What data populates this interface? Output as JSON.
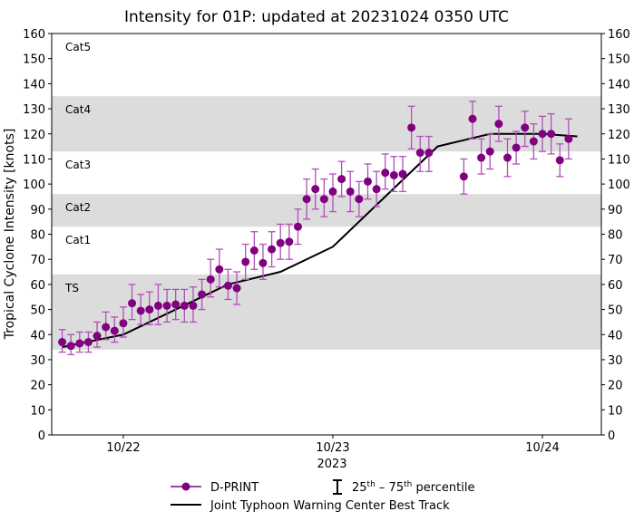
{
  "chart_data": {
    "type": "scatter",
    "title": "Intensity for 01P: updated at 20231024 0350 UTC",
    "ylabel": "Tropical Cyclone Intensity [knots]",
    "xlabel": "",
    "ylim": [
      0,
      160
    ],
    "xlim": [
      "2023-10-21T15:48",
      "2023-10-24T06:45"
    ],
    "yticks": [
      0,
      10,
      20,
      30,
      40,
      50,
      60,
      70,
      80,
      90,
      100,
      110,
      120,
      130,
      140,
      150,
      160
    ],
    "xticks": [
      {
        "date": "2023-10-22T00:00",
        "label": "10/22"
      },
      {
        "date": "2023-10-23T00:00",
        "label": "10/23"
      },
      {
        "date": "2023-10-24T00:00",
        "label": "10/24"
      }
    ],
    "year_label": "2023",
    "grid": false,
    "bands": [
      {
        "label": "TS",
        "low": 34,
        "high": 64,
        "shaded": true
      },
      {
        "label": "Cat1",
        "low": 64,
        "high": 83,
        "shaded": false
      },
      {
        "label": "Cat2",
        "low": 83,
        "high": 96,
        "shaded": true
      },
      {
        "label": "Cat3",
        "low": 96,
        "high": 113,
        "shaded": false
      },
      {
        "label": "Cat4",
        "low": 113,
        "high": 135,
        "shaded": true
      },
      {
        "label": "Cat5",
        "low": 135,
        "high": 160,
        "shaded": false
      }
    ],
    "colors": {
      "dprint": "#800080",
      "errorbar": "#b050b8",
      "best_track": "#000000",
      "band": "#dcdcdc"
    },
    "series": [
      {
        "name": "D-PRINT",
        "segments": [
          {
            "start": "2023-10-21T17:00",
            "step_hours": 1,
            "values": [
              37,
              35.5,
              36.5,
              37,
              39.5,
              43,
              41.5,
              44.5,
              52.5,
              49.5,
              50,
              51.5,
              51.5,
              52,
              51.5,
              51.5,
              56,
              62,
              66,
              59.5,
              58.5,
              69,
              73.5,
              68.5,
              74,
              76.5,
              77,
              83,
              94,
              98,
              94,
              97,
              102,
              97,
              94,
              101,
              98,
              104.5,
              103.5,
              104,
              122.5,
              112.5,
              112.5
            ],
            "p25": [
              33,
              32,
              33,
              33,
              35,
              38,
              37,
              39,
              46,
              44,
              44,
              44,
              45,
              46,
              45,
              45,
              50,
              55,
              59,
              54,
              52,
              62,
              66,
              62,
              67,
              70,
              70,
              76,
              86,
              90,
              87,
              89,
              95,
              89,
              87,
              94,
              91,
              98,
              97,
              97,
              114,
              105,
              105
            ],
            "p75": [
              42,
              40,
              41,
              41,
              45,
              49,
              47,
              51,
              60,
              56,
              57,
              60,
              58,
              58,
              58,
              59,
              62,
              70,
              74,
              66,
              65,
              76,
              81,
              76,
              81,
              84,
              84,
              90,
              102,
              106,
              102,
              104,
              109,
              105,
              101,
              108,
              105,
              112,
              111,
              111,
              131,
              119,
              119
            ]
          },
          {
            "start": "2023-10-23T15:00",
            "step_hours": 1,
            "values": [
              103,
              126,
              110.5,
              113,
              124,
              110.5,
              114.5,
              122.5,
              117,
              120,
              120,
              109.5,
              118
            ],
            "p25": [
              96,
              118,
              104,
              106,
              117,
              103,
              108,
              115,
              110,
              113,
              112,
              103,
              110
            ],
            "p75": [
              110,
              133,
              118,
              120,
              131,
              118,
              121,
              129,
              124,
              127,
              128,
              116,
              126
            ]
          }
        ]
      },
      {
        "name": "Joint Typhoon Warning Center Best Track",
        "points": [
          {
            "date": "2023-10-21T17:00",
            "value": 35
          },
          {
            "date": "2023-10-22T00:00",
            "value": 40
          },
          {
            "date": "2023-10-22T06:00",
            "value": 50
          },
          {
            "date": "2023-10-22T12:00",
            "value": 60
          },
          {
            "date": "2023-10-22T18:00",
            "value": 65
          },
          {
            "date": "2023-10-23T00:00",
            "value": 75
          },
          {
            "date": "2023-10-23T12:00",
            "value": 115
          },
          {
            "date": "2023-10-23T18:00",
            "value": 120
          },
          {
            "date": "2023-10-24T00:00",
            "value": 120
          },
          {
            "date": "2023-10-24T04:00",
            "value": 119
          }
        ]
      }
    ],
    "legend": {
      "placement": "bottom-center",
      "dprint": "D-PRINT",
      "percentile_pre": "25",
      "percentile_sup1": "th",
      "percentile_mid": " – 75",
      "percentile_sup2": "th",
      "percentile_post": " percentile",
      "best_track": "Joint Typhoon Warning Center Best Track"
    }
  }
}
